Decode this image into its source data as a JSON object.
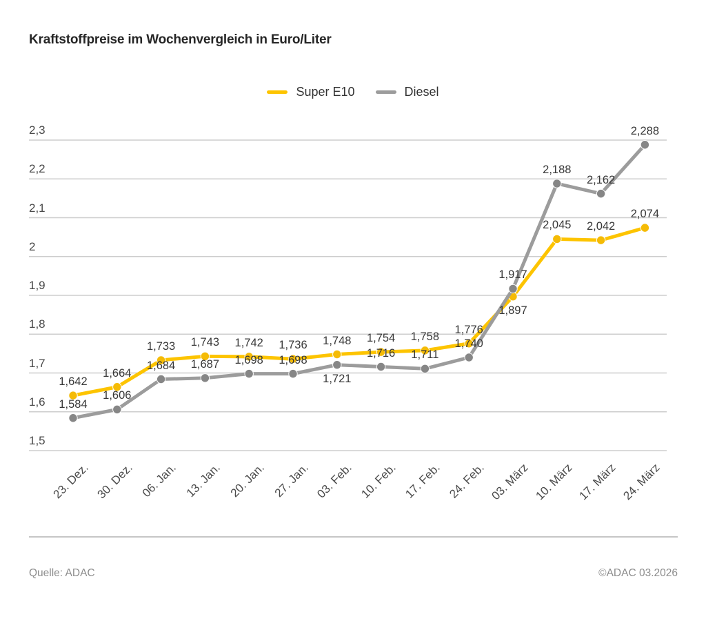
{
  "title": "Kraftstoffpreise im Wochenvergleich in Euro/Liter",
  "footer": {
    "source": "Quelle: ADAC",
    "copyright": "©ADAC 03.2026"
  },
  "colors": {
    "super_e10_yellow": "#FDC400",
    "diesel_gray": "#9C9C9C",
    "grid": "#CDCDCD",
    "background": "#FFFFFF"
  },
  "chart_data": {
    "type": "line",
    "title": "Kraftstoffpreise im Wochenvergleich in Euro/Liter",
    "xlabel": "",
    "ylabel": "Euro/Liter",
    "grid": true,
    "legend_position": "top-center",
    "ylim": [
      1.5,
      2.3
    ],
    "yticks": [
      {
        "value": 1.5,
        "label": "1,5"
      },
      {
        "value": 1.6,
        "label": "1,6"
      },
      {
        "value": 1.7,
        "label": "1,7"
      },
      {
        "value": 1.8,
        "label": "1,8"
      },
      {
        "value": 1.9,
        "label": "1,9"
      },
      {
        "value": 2.0,
        "label": "2"
      },
      {
        "value": 2.1,
        "label": "2,1"
      },
      {
        "value": 2.2,
        "label": "2,2"
      },
      {
        "value": 2.3,
        "label": "2,3"
      }
    ],
    "categories": [
      "23. Dez.",
      "30. Dez.",
      "06. Jan.",
      "13. Jan.",
      "20. Jan.",
      "27. Jan.",
      "03. Feb.",
      "10. Feb.",
      "17. Feb.",
      "24. Feb.",
      "03. März",
      "10. März",
      "17. März",
      "24. März"
    ],
    "series": [
      {
        "name": "Super E10",
        "color": "#FDC400",
        "dot_color": "#F5BB05",
        "values": [
          1.642,
          1.664,
          1.733,
          1.743,
          1.742,
          1.736,
          1.748,
          1.754,
          1.758,
          1.776,
          1.897,
          2.045,
          2.042,
          2.074
        ],
        "label_below_indices": [
          10
        ]
      },
      {
        "name": "Diesel",
        "color": "#9C9C9C",
        "dot_color": "#868686",
        "values": [
          1.584,
          1.606,
          1.684,
          1.687,
          1.698,
          1.698,
          1.721,
          1.716,
          1.711,
          1.74,
          1.917,
          2.188,
          2.162,
          2.288
        ],
        "label_below_indices": [
          6
        ]
      }
    ],
    "value_label_format": "german-comma-3-decimals"
  }
}
